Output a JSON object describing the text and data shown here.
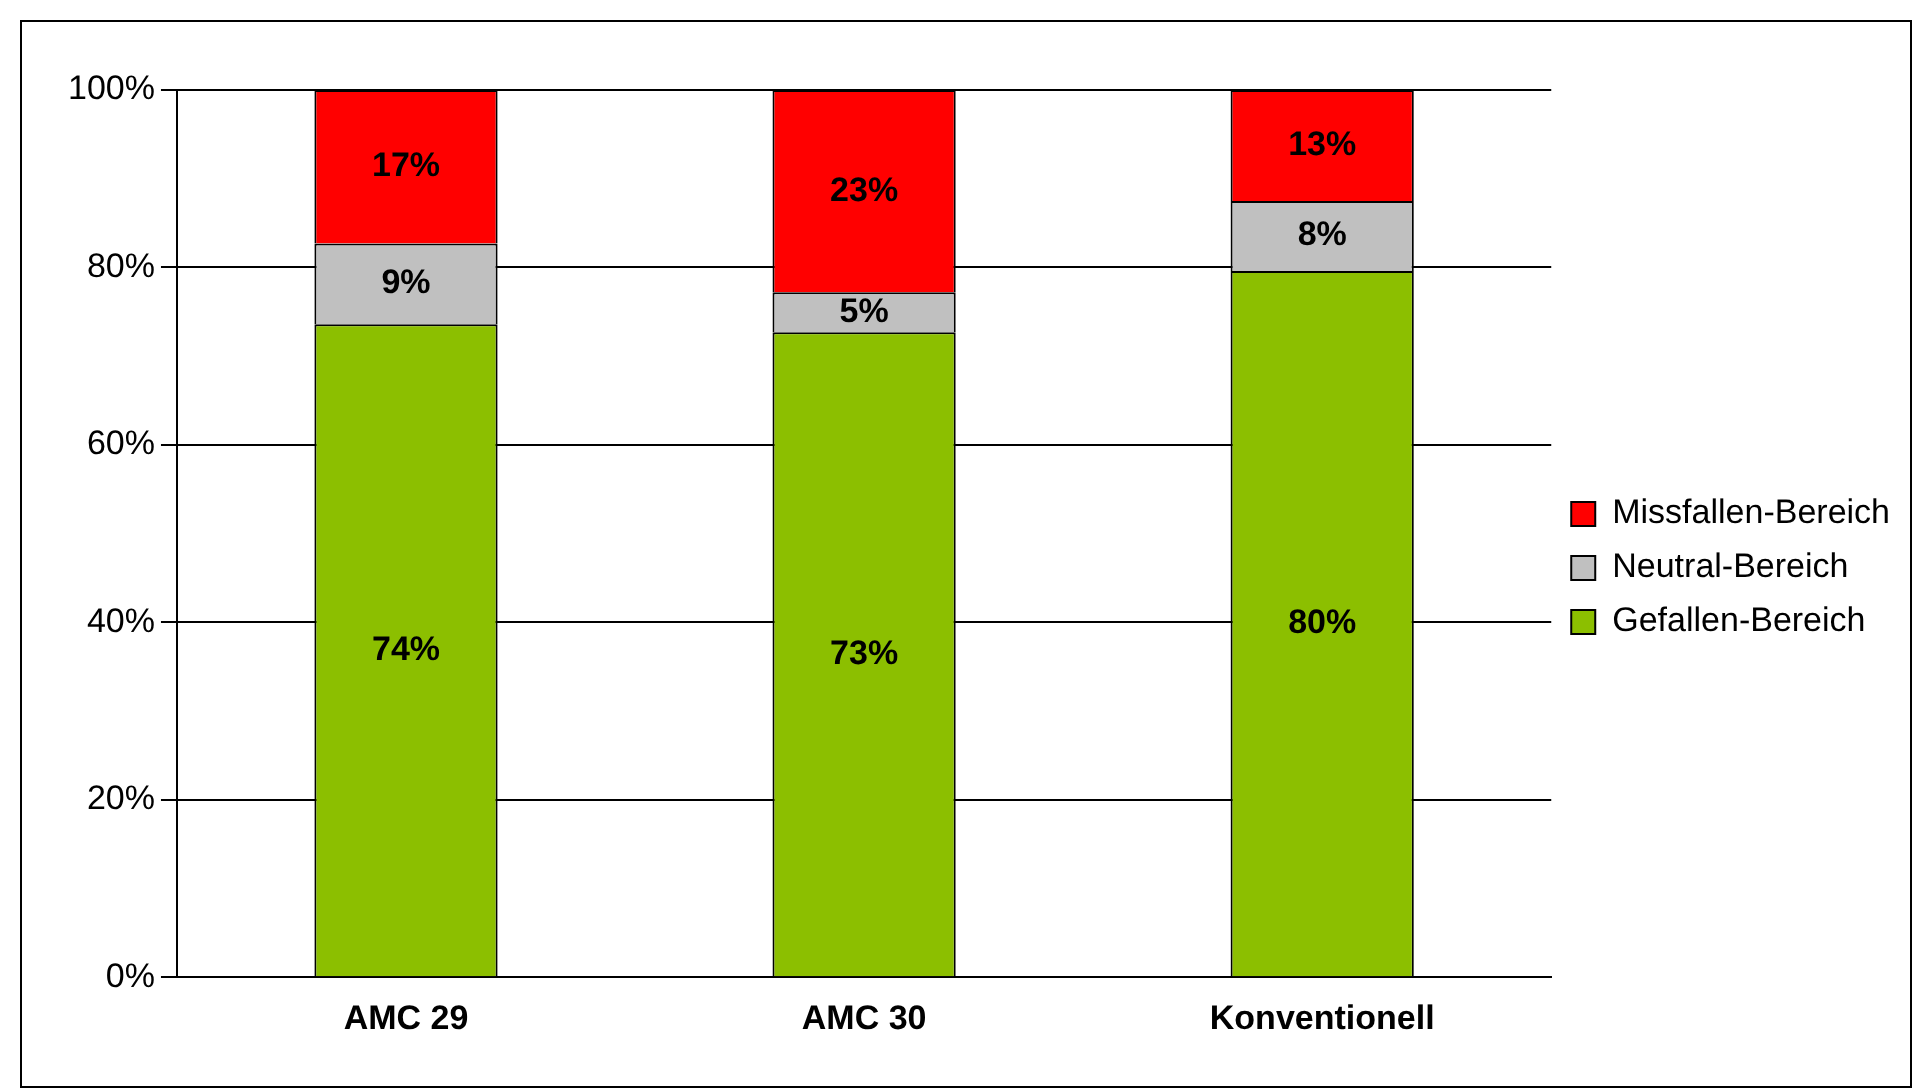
{
  "chart_data": {
    "type": "bar",
    "stacked": true,
    "categories": [
      "AMC 29",
      "AMC 30",
      "Konventionell"
    ],
    "series": [
      {
        "name": "Gefallen-Bereich",
        "color": "#8cbf00",
        "values": [
          73.6,
          72.7,
          79.6
        ],
        "value_labels": [
          "74%",
          "73%",
          "80%"
        ]
      },
      {
        "name": "Neutral-Bereich",
        "color": "#c0c0c0",
        "values": [
          9.1,
          4.5,
          7.9
        ],
        "value_labels": [
          "9%",
          "5%",
          "8%"
        ]
      },
      {
        "name": "Missfallen-Bereich",
        "color": "#ff0000",
        "values": [
          17.3,
          22.8,
          12.5
        ],
        "value_labels": [
          "17%",
          "23%",
          "13%"
        ]
      }
    ],
    "ylim": [
      0,
      100
    ],
    "yticks": [
      {
        "value": 0,
        "label": "0%"
      },
      {
        "value": 20,
        "label": "20%"
      },
      {
        "value": 40,
        "label": "40%"
      },
      {
        "value": 60,
        "label": "60%"
      },
      {
        "value": 80,
        "label": "80%"
      },
      {
        "value": 100,
        "label": "100%"
      }
    ],
    "grid": "y",
    "legend": "right"
  }
}
